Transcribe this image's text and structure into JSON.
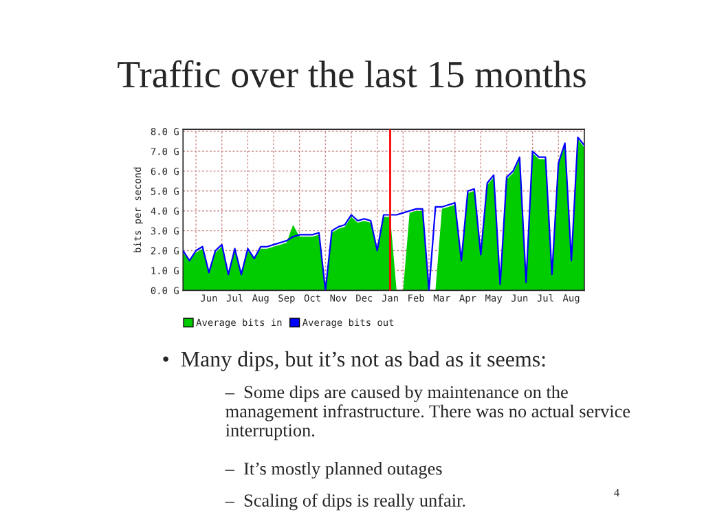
{
  "chart_data": {
    "type": "area",
    "title": "Traffic over the last 15 months",
    "ylabel": "bits per second",
    "categories": [
      null,
      null,
      null,
      null,
      "Jun",
      null,
      null,
      null,
      "Jul",
      null,
      null,
      null,
      "Aug",
      null,
      null,
      null,
      "Sep",
      null,
      null,
      null,
      "Oct",
      null,
      null,
      null,
      "Nov",
      null,
      null,
      null,
      "Dec",
      null,
      null,
      null,
      "Jan",
      null,
      null,
      null,
      "Feb",
      null,
      null,
      null,
      "Mar",
      null,
      null,
      null,
      "Apr",
      null,
      null,
      null,
      "May",
      null,
      null,
      null,
      "Jun",
      null,
      null,
      null,
      "Jul",
      null,
      null,
      null,
      "Aug",
      null,
      null
    ],
    "series": [
      {
        "name": "Average bits in",
        "color": "#00cc00",
        "values": [
          1.9,
          1.5,
          1.9,
          2.1,
          0.9,
          1.9,
          2.2,
          0.8,
          2.0,
          0.8,
          2.0,
          1.6,
          2.1,
          2.1,
          2.2,
          2.3,
          2.4,
          3.3,
          2.7,
          2.7,
          2.7,
          2.8,
          0.0,
          2.9,
          3.1,
          3.2,
          3.7,
          3.4,
          3.5,
          3.4,
          2.0,
          3.7,
          3.7,
          0.0,
          0.0,
          3.9,
          4.0,
          4.0,
          0.0,
          0.0,
          4.1,
          4.2,
          4.3,
          1.5,
          4.9,
          5.0,
          1.8,
          5.3,
          5.7,
          0.3,
          5.6,
          5.9,
          6.6,
          0.4,
          6.9,
          6.6,
          6.6,
          0.8,
          6.3,
          7.3,
          1.5,
          7.6,
          7.2
        ]
      },
      {
        "name": "Average bits out",
        "color": "#0000ff",
        "type": "line",
        "values": [
          2.0,
          1.5,
          2.0,
          2.2,
          0.9,
          2.0,
          2.3,
          0.8,
          2.1,
          0.8,
          2.1,
          1.6,
          2.2,
          2.2,
          2.3,
          2.4,
          2.5,
          2.7,
          2.8,
          2.8,
          2.8,
          2.9,
          0.0,
          3.0,
          3.2,
          3.3,
          3.8,
          3.5,
          3.6,
          3.5,
          2.0,
          3.8,
          3.8,
          3.8,
          3.9,
          4.0,
          4.1,
          4.1,
          0.0,
          4.2,
          4.2,
          4.3,
          4.4,
          1.5,
          5.0,
          5.1,
          1.8,
          5.4,
          5.8,
          0.3,
          5.7,
          6.0,
          6.7,
          0.4,
          7.0,
          6.7,
          6.7,
          0.8,
          6.4,
          7.4,
          1.5,
          7.7,
          7.3
        ]
      }
    ],
    "ylim": [
      0,
      8.1
    ],
    "yticks": [
      {
        "value": 0,
        "label": "0.0 G"
      },
      {
        "value": 1,
        "label": "1.0 G"
      },
      {
        "value": 2,
        "label": "2.0 G"
      },
      {
        "value": 3,
        "label": "3.0 G"
      },
      {
        "value": 4,
        "label": "4.0 G"
      },
      {
        "value": 5,
        "label": "5.0 G"
      },
      {
        "value": 6,
        "label": "6.0 G"
      },
      {
        "value": 7,
        "label": "7.0 G"
      },
      {
        "value": 8,
        "label": "8.0 G"
      }
    ],
    "ref_lines": [
      {
        "axis": "x",
        "value": "Jan",
        "color": "#ff0000"
      }
    ],
    "grid": true,
    "legend": "bottom left",
    "annotations": [
      "•  Many dips, but it’s not as bad as it seems:",
      "–  Some dips are caused by maintenance on the management infrastructure. There was no actual service interruption.",
      "–  It’s mostly planned outages",
      "–  Scaling of dips is really unfair.",
      "4"
    ]
  }
}
